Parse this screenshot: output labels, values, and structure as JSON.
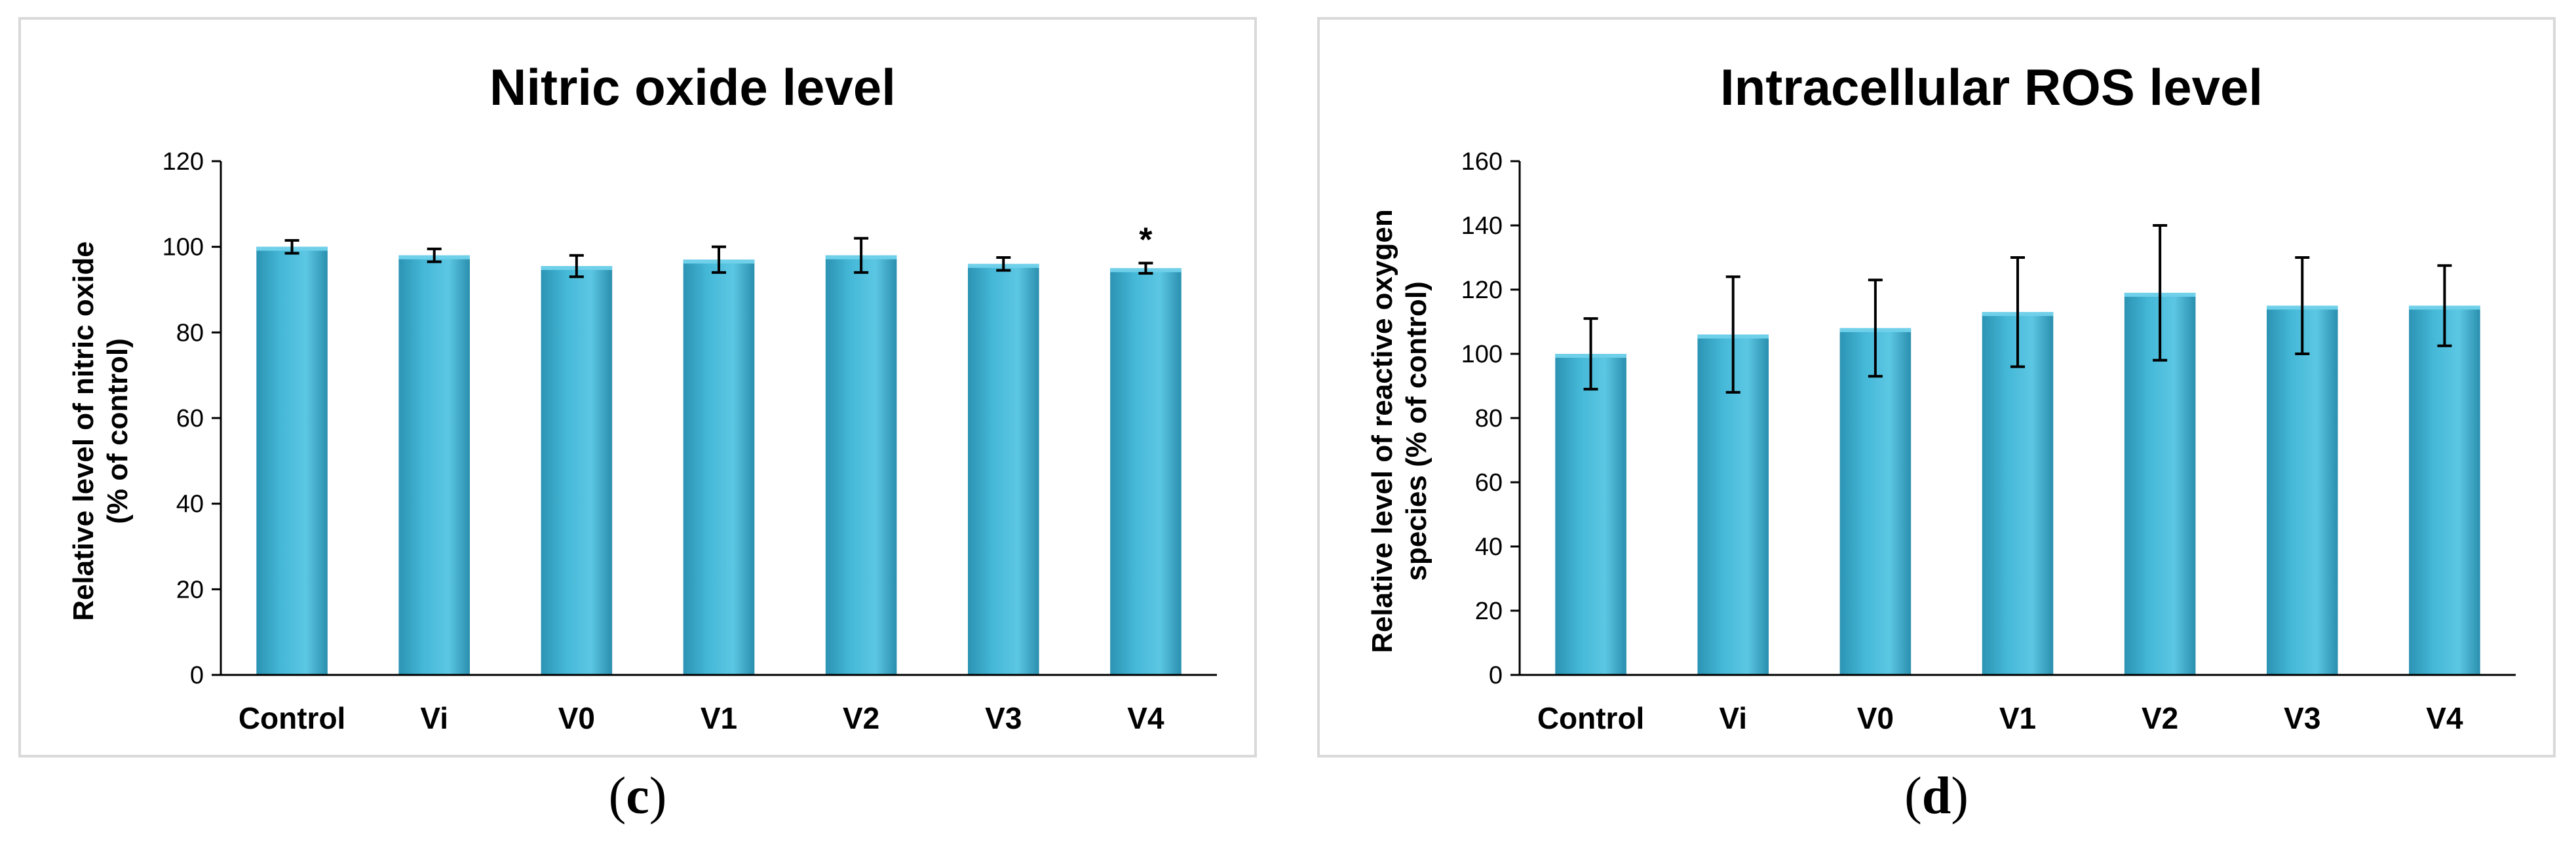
{
  "chart_data": [
    {
      "type": "bar",
      "title": "Nitric oxide level",
      "xlabel": "",
      "ylabel_lines": [
        "Relative level of nitric oxide",
        "(% of control)"
      ],
      "categories": [
        "Control",
        "Vi",
        "V0",
        "V1",
        "V2",
        "V3",
        "V4"
      ],
      "values": [
        100,
        98,
        95.5,
        97,
        98,
        96,
        95
      ],
      "errors": [
        1.5,
        1.5,
        2.5,
        3,
        4,
        1.5,
        1.2
      ],
      "ylim": [
        0,
        120
      ],
      "yticks": [
        0,
        20,
        40,
        60,
        80,
        100,
        120
      ],
      "annotations": [
        {
          "category": "V4",
          "text": "*"
        }
      ],
      "color": "#45b8d8",
      "caption": "c"
    },
    {
      "type": "bar",
      "title": "Intracellular ROS level",
      "xlabel": "",
      "ylabel_lines": [
        "Relative level of reactive oxygen",
        "species (% of control)"
      ],
      "categories": [
        "Control",
        "Vi",
        "V0",
        "V1",
        "V2",
        "V3",
        "V4"
      ],
      "values": [
        100,
        106,
        108,
        113,
        119,
        115,
        115
      ],
      "errors": [
        11,
        18,
        15,
        17,
        21,
        15,
        12.5
      ],
      "ylim": [
        0,
        160
      ],
      "yticks": [
        0,
        20,
        40,
        60,
        80,
        100,
        120,
        140,
        160
      ],
      "annotations": [],
      "color": "#45b8d8",
      "caption": "d"
    }
  ]
}
